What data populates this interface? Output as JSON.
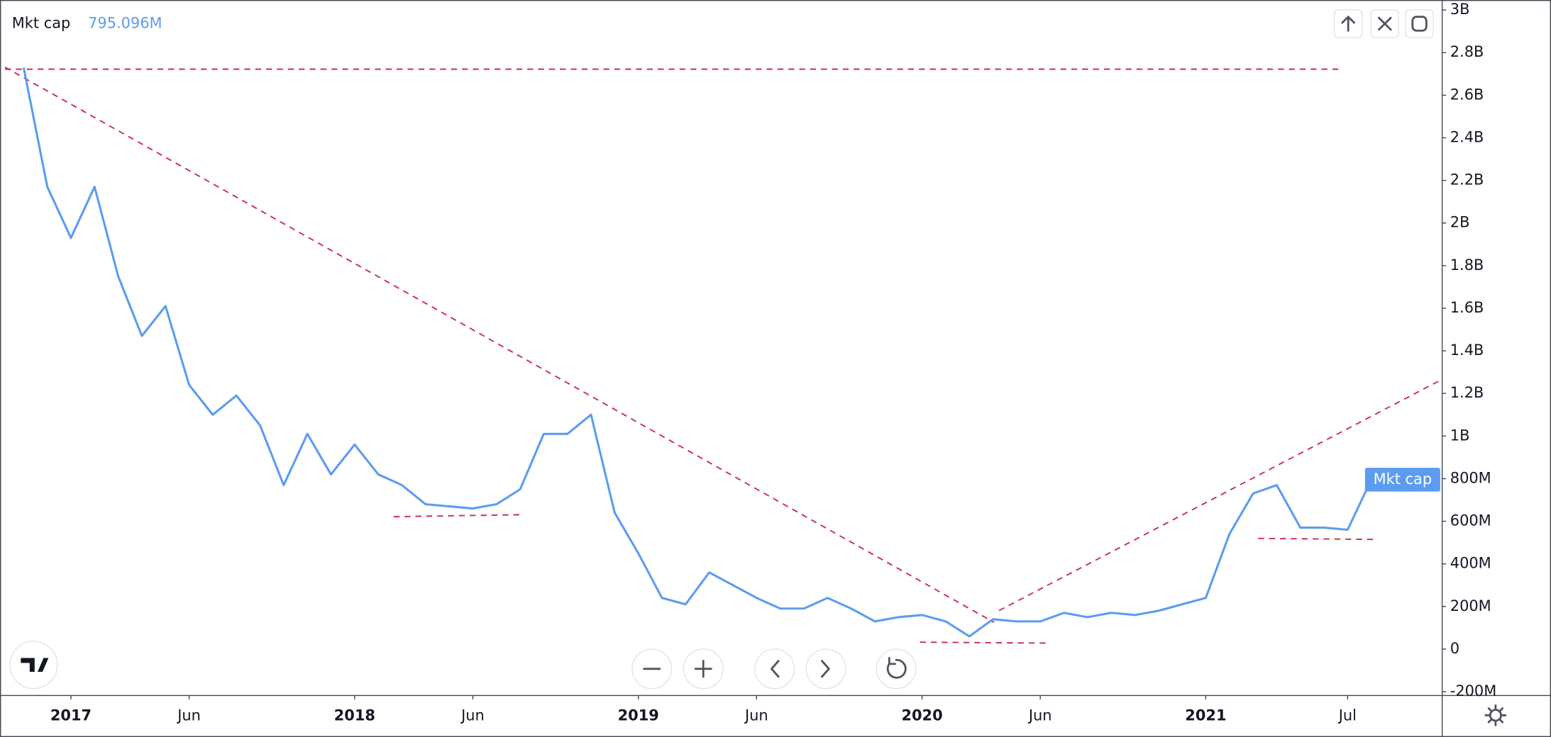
{
  "chart_data": {
    "type": "line",
    "x": [
      "2016-11",
      "2016-12",
      "2017-01",
      "2017-02",
      "2017-03",
      "2017-04",
      "2017-05",
      "2017-06",
      "2017-07",
      "2017-08",
      "2017-09",
      "2017-10",
      "2017-11",
      "2017-12",
      "2018-01",
      "2018-02",
      "2018-03",
      "2018-04",
      "2018-05",
      "2018-06",
      "2018-07",
      "2018-08",
      "2018-09",
      "2018-10",
      "2018-11",
      "2018-12",
      "2019-01",
      "2019-02",
      "2019-03",
      "2019-04",
      "2019-05",
      "2019-06",
      "2019-07",
      "2019-08",
      "2019-09",
      "2019-10",
      "2019-11",
      "2019-12",
      "2020-01",
      "2020-02",
      "2020-03",
      "2020-04",
      "2020-05",
      "2020-06",
      "2020-07",
      "2020-08",
      "2020-09",
      "2020-10",
      "2020-11",
      "2020-12",
      "2021-01",
      "2021-02",
      "2021-03",
      "2021-04",
      "2021-05",
      "2021-06",
      "2021-07",
      "2021-08"
    ],
    "series": [
      {
        "name": "Mkt cap",
        "color": "#5b9cf0",
        "values": [
          2730000000,
          2170000000,
          1930000000,
          2170000000,
          1750000000,
          1470000000,
          1610000000,
          1240000000,
          1100000000,
          1190000000,
          1050000000,
          770000000,
          1010000000,
          820000000,
          960000000,
          820000000,
          770000000,
          680000000,
          670000000,
          660000000,
          680000000,
          750000000,
          1010000000,
          1010000000,
          1100000000,
          640000000,
          450000000,
          240000000,
          210000000,
          360000000,
          300000000,
          240000000,
          190000000,
          190000000,
          240000000,
          190000000,
          130000000,
          150000000,
          160000000,
          130000000,
          60000000,
          140000000,
          130000000,
          130000000,
          170000000,
          150000000,
          170000000,
          160000000,
          180000000,
          210000000,
          240000000,
          540000000,
          730000000,
          770000000,
          570000000,
          570000000,
          560000000,
          795096000
        ],
        "value_labels": [
          null,
          null,
          null,
          null,
          null,
          null,
          null,
          null,
          null,
          null,
          null,
          null,
          null,
          null,
          null,
          null,
          null,
          null,
          null,
          null,
          null,
          null,
          null,
          null,
          null,
          null,
          null,
          null,
          null,
          null,
          null,
          null,
          null,
          null,
          null,
          null,
          null,
          null,
          null,
          null,
          null,
          null,
          null,
          null,
          null,
          null,
          null,
          null,
          null,
          null,
          null,
          null,
          null,
          null,
          null,
          null,
          null,
          "795.096M"
        ]
      }
    ],
    "xlim": [
      "2016-10",
      "2021-11"
    ],
    "xticks": [
      {
        "value": "2017-01",
        "label": "2017"
      },
      {
        "value": "2017-06",
        "label": "Jun"
      },
      {
        "value": "2018-01",
        "label": "2018"
      },
      {
        "value": "2018-06",
        "label": "Jun"
      },
      {
        "value": "2019-01",
        "label": "2019"
      },
      {
        "value": "2019-06",
        "label": "Jun"
      },
      {
        "value": "2020-01",
        "label": "2020"
      },
      {
        "value": "2020-06",
        "label": "Jun"
      },
      {
        "value": "2021-01",
        "label": "2021"
      },
      {
        "value": "2021-07",
        "label": "Jul"
      }
    ],
    "ylim": [
      -218000000,
      3047000000
    ],
    "yticks": [
      {
        "value": -200000000,
        "label": "-200M"
      },
      0,
      {
        "value": 200000000,
        "label": "200M"
      },
      {
        "value": 400000000,
        "label": "400M"
      },
      {
        "value": 600000000,
        "label": "600M"
      },
      {
        "value": 800000000,
        "label": "800M"
      },
      {
        "value": 1000000000,
        "label": "1B"
      },
      {
        "value": 1200000000,
        "label": "1.2B"
      },
      {
        "value": 1400000000,
        "label": "1.4B"
      },
      {
        "value": 1600000000,
        "label": "1.6B"
      },
      {
        "value": 1800000000,
        "label": "1.8B"
      },
      {
        "value": 2000000000,
        "label": "2B"
      },
      {
        "value": 2200000000,
        "label": "2.2B"
      },
      {
        "value": 2400000000,
        "label": "2.4B"
      },
      {
        "value": 2600000000,
        "label": "2.6B"
      },
      {
        "value": 2800000000,
        "label": "2.8B"
      },
      {
        "value": 3000000000,
        "label": "3B"
      }
    ],
    "grid": false
  }
}
